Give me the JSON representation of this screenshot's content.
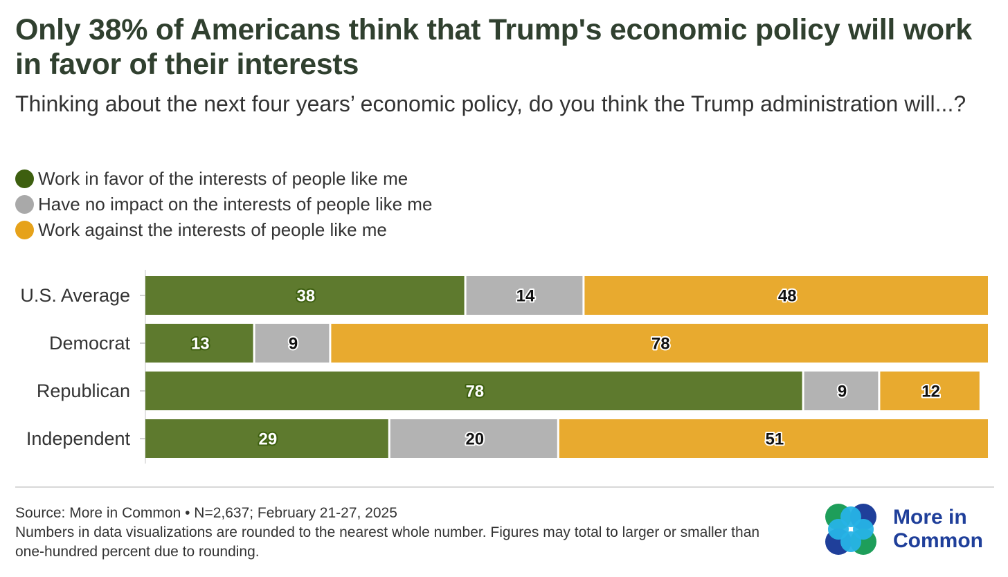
{
  "title": "Only 38% of Americans think that Trump's economic policy will work in favor of their interests",
  "subtitle": "Thinking about the next four years’ economic policy, do you think the Trump administration will...?",
  "chart_data": {
    "type": "bar",
    "orientation": "horizontal",
    "stacked": true,
    "categories": [
      "U.S. Average",
      "Democrat",
      "Republican",
      "Independent"
    ],
    "series": [
      {
        "name": "Work in favor of the interests of people like me",
        "color": "#5e7a2e",
        "values": [
          38,
          13,
          78,
          29
        ]
      },
      {
        "name": "Have no impact on the interests of people like me",
        "color": "#b3b3b3",
        "values": [
          14,
          9,
          9,
          20
        ]
      },
      {
        "name": "Work against the interests of people like me",
        "color": "#e8aa2f",
        "values": [
          48,
          78,
          12,
          51
        ]
      }
    ],
    "xlim": [
      0,
      100
    ],
    "legend_position": "top-left",
    "grid": false
  },
  "footer": {
    "source": "Source: More in Common • N=2,637; February 21-27, 2025",
    "note": "Numbers in data visualizations are rounded to the nearest whole number. Figures may total to larger or smaller than one-hundred percent due to rounding."
  },
  "logo": {
    "line1": "More in",
    "line2": "Common"
  }
}
